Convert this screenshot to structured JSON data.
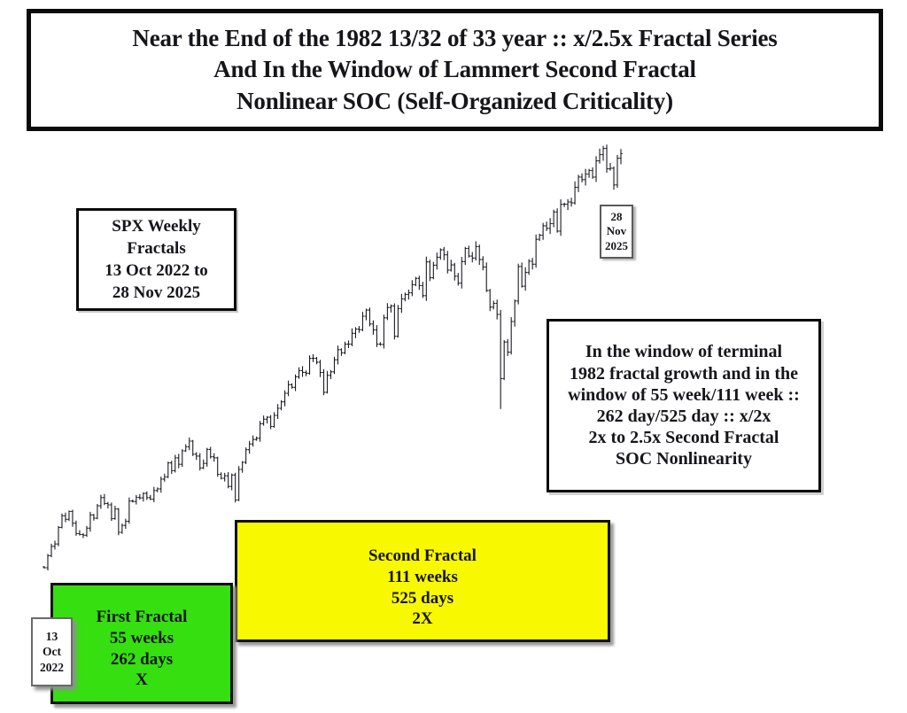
{
  "title_box": {
    "lines": [
      "Near the End of the 1982 13/32 of 33 year :: x/2.5x Fractal Series",
      "And In the Window of  Lammert Second Fractal",
      "Nonlinear SOC  (Self-Organized Criticality)"
    ]
  },
  "chart_label_box": {
    "lines": [
      "SPX Weekly",
      "Fractals",
      "13 Oct 2022 to",
      "28 Nov 2025"
    ]
  },
  "start_date_box": {
    "lines": [
      "13",
      "Oct",
      "2022"
    ]
  },
  "end_date_box": {
    "lines": [
      "28",
      "Nov",
      "2025"
    ]
  },
  "annotation_box": {
    "lines": [
      "In the window of terminal",
      "1982 fractal growth and in the",
      "window of 55 week/111 week ::",
      "262 day/525 day :: x/2x",
      "2x to 2.5x Second Fractal",
      "SOC Nonlinearity"
    ]
  },
  "first_fractal_box": {
    "lines": [
      "First Fractal",
      "55 weeks",
      "262 days",
      "X"
    ],
    "fill": "#36df10"
  },
  "second_fractal_box": {
    "lines": [
      "Second Fractal",
      "111 weeks",
      "525 days",
      "2X"
    ],
    "fill": "#f8f800"
  },
  "colors": {
    "bar": "#1b1b22",
    "box_border": "#0a0a0a",
    "first_fractal_green": "#36df10",
    "second_fractal_yellow": "#f8f800"
  },
  "chart_data": {
    "type": "line",
    "style": "weekly-ohlc-bars",
    "title": "SPX Weekly Fractals 13 Oct 2022 to 28 Nov 2025",
    "x_start": "13 Oct 2022",
    "x_end": "28 Nov 2025",
    "interval": "weekly",
    "axes_visible": false,
    "grid": false,
    "ylim": [
      3450,
      6950
    ],
    "first_bar_open": 3589,
    "low_overrides": {
      "129": 4835
    },
    "series": [
      {
        "name": "SPX weekly close",
        "values": [
          3583,
          3678,
          3752,
          3770,
          3901,
          3993,
          3965,
          4026,
          3934,
          3852,
          3845,
          3839,
          3895,
          3999,
          3973,
          4071,
          4136,
          4090,
          4079,
          3970,
          4046,
          3862,
          3917,
          3949,
          4109,
          4105,
          4138,
          4134,
          4169,
          4136,
          4124,
          4192,
          4205,
          4282,
          4299,
          4410,
          4348,
          4450,
          4399,
          4505,
          4536,
          4582,
          4478,
          4464,
          4370,
          4406,
          4516,
          4458,
          4450,
          4320,
          4288,
          4308,
          4224,
          4314,
          4117,
          4358,
          4415,
          4514,
          4559,
          4594,
          4604,
          4719,
          4754,
          4770,
          4697,
          4784,
          4840,
          4891,
          4959,
          5027,
          5006,
          5089,
          5137,
          5124,
          5117,
          5234,
          5235,
          5204,
          5123,
          4967,
          5100,
          5128,
          5223,
          5303,
          5278,
          5346,
          5347,
          5432,
          5465,
          5460,
          5567,
          5615,
          5505,
          5459,
          5347,
          5344,
          5554,
          5635,
          5648,
          5408,
          5626,
          5703,
          5738,
          5751,
          5815,
          5865,
          5808,
          5729,
          5995,
          5870,
          5969,
          6032,
          6090,
          6051,
          5931,
          5971,
          5882,
          5827,
          5997,
          6101,
          6041,
          6026,
          6115,
          6013,
          5955,
          5770,
          5639,
          5668,
          5581,
          5074,
          5363,
          5283,
          5525,
          5687,
          5959,
          5803,
          5912,
          6000,
          5977,
          6173,
          6205,
          6280,
          6260,
          6297,
          6389,
          6238,
          6449,
          6450,
          6467,
          6460,
          6584,
          6664,
          6644,
          6688,
          6716,
          6664,
          6792,
          6841,
          6890,
          6729,
          6734,
          6602,
          6813,
          6849
        ]
      }
    ]
  }
}
